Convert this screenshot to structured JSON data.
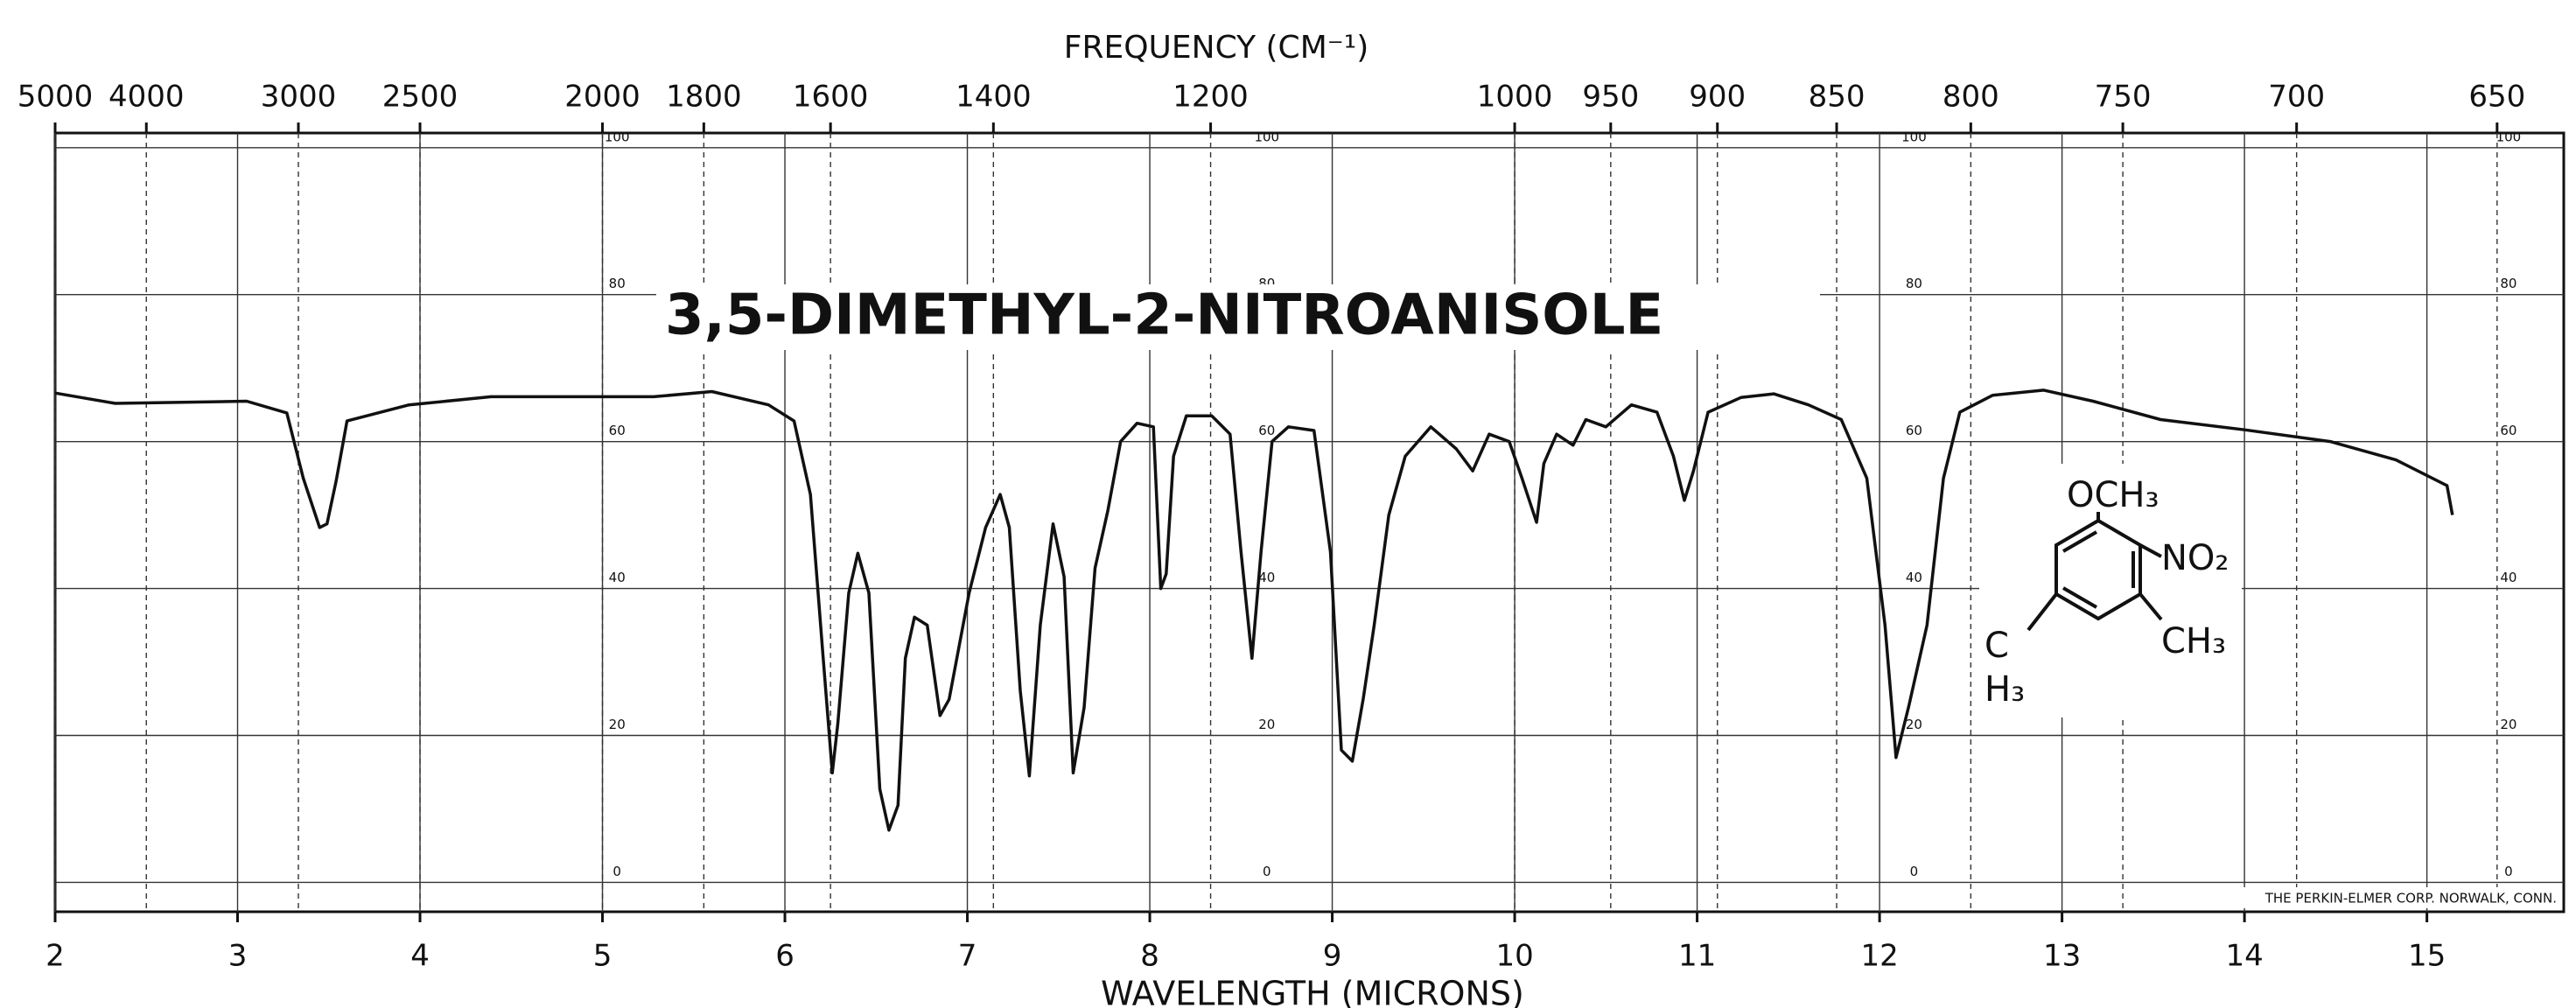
{
  "chart_data": {
    "type": "line",
    "title": "3,5-DIMETHYL-2-NITROANISOLE",
    "xlabel": "WAVELENGTH (MICRONS)",
    "x2label": "FREQUENCY (CM⁻¹)",
    "color": "#111111",
    "grid": true,
    "xlim": [
      2,
      15.75
    ],
    "xticks": [
      2,
      3,
      4,
      5,
      6,
      7,
      8,
      9,
      10,
      11,
      12,
      13,
      14,
      15
    ],
    "x2ticks": [
      5000,
      4000,
      3000,
      2500,
      2000,
      1800,
      1600,
      1400,
      1200,
      1000,
      950,
      900,
      850,
      800,
      750,
      700,
      650
    ],
    "ylim": [
      -4,
      102
    ],
    "yticks": [
      0,
      20,
      40,
      60,
      80,
      100
    ],
    "x": [
      2.0,
      2.33,
      3.05,
      3.27,
      3.36,
      3.45,
      3.49,
      3.54,
      3.6,
      3.94,
      4.39,
      4.84,
      5.28,
      5.6,
      5.91,
      6.05,
      6.14,
      6.21,
      6.26,
      6.29,
      6.35,
      6.4,
      6.46,
      6.52,
      6.57,
      6.62,
      6.66,
      6.71,
      6.78,
      6.85,
      6.9,
      7.01,
      7.1,
      7.18,
      7.23,
      7.29,
      7.34,
      7.4,
      7.47,
      7.53,
      7.58,
      7.64,
      7.7,
      7.77,
      7.84,
      7.93,
      8.02,
      8.06,
      8.09,
      8.13,
      8.2,
      8.34,
      8.44,
      8.5,
      8.56,
      8.61,
      8.67,
      8.76,
      8.9,
      8.99,
      9.05,
      9.11,
      9.17,
      9.23,
      9.31,
      9.4,
      9.54,
      9.68,
      9.77,
      9.86,
      9.97,
      10.04,
      10.12,
      10.16,
      10.23,
      10.32,
      10.39,
      10.5,
      10.64,
      10.78,
      10.87,
      10.93,
      10.98,
      11.06,
      11.24,
      11.42,
      11.61,
      11.79,
      11.93,
      12.03,
      12.09,
      12.16,
      12.26,
      12.35,
      12.44,
      12.62,
      12.9,
      13.17,
      13.54,
      14.0,
      14.47,
      14.83,
      15.11,
      15.14
    ],
    "values": [
      66.6,
      65.2,
      65.5,
      63.9,
      55,
      48.3,
      48.8,
      54.6,
      62.8,
      65,
      66.1,
      66.1,
      66.1,
      66.8,
      65,
      62.8,
      52.8,
      30.5,
      14.9,
      21.6,
      39.4,
      44.8,
      39.4,
      12.7,
      7.1,
      10.5,
      30.5,
      36.1,
      35,
      22.7,
      24.9,
      39.4,
      48.3,
      52.8,
      48.3,
      26.1,
      14.5,
      35,
      48.8,
      41.6,
      14.9,
      23.8,
      42.8,
      50.6,
      60,
      62.5,
      62,
      40,
      42,
      58,
      63.5,
      63.5,
      61,
      45,
      30.5,
      45,
      60,
      62,
      61.5,
      45,
      18,
      16.5,
      25,
      35,
      50,
      58,
      62,
      59,
      56,
      61,
      60,
      55,
      49,
      57,
      61,
      59.5,
      63,
      62,
      65,
      64,
      58,
      52,
      56,
      64,
      66,
      66.5,
      65,
      63,
      55,
      35,
      17,
      24,
      35,
      55,
      64,
      66.3,
      67,
      65.5,
      63,
      61.6,
      60,
      57.5,
      54,
      50
    ],
    "structure_labels": [
      "OCH₃",
      "NO₂",
      "CH₃",
      "C",
      "H₃"
    ],
    "footer": "THE PERKIN-ELMER CORP.  NORWALK, CONN."
  }
}
